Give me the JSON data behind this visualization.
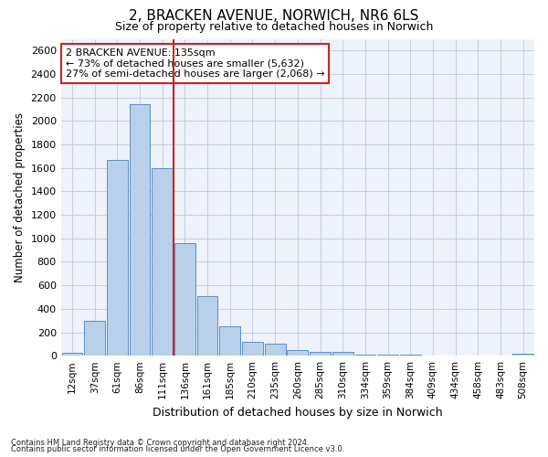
{
  "title1": "2, BRACKEN AVENUE, NORWICH, NR6 6LS",
  "title2": "Size of property relative to detached houses in Norwich",
  "xlabel": "Distribution of detached houses by size in Norwich",
  "ylabel": "Number of detached properties",
  "footnote1": "Contains HM Land Registry data © Crown copyright and database right 2024.",
  "footnote2": "Contains public sector information licensed under the Open Government Licence v3.0.",
  "annotation_line1": "2 BRACKEN AVENUE: 135sqm",
  "annotation_line2": "← 73% of detached houses are smaller (5,632)",
  "annotation_line3": "27% of semi-detached houses are larger (2,068) →",
  "bar_labels": [
    "12sqm",
    "37sqm",
    "61sqm",
    "86sqm",
    "111sqm",
    "136sqm",
    "161sqm",
    "185sqm",
    "210sqm",
    "235sqm",
    "260sqm",
    "285sqm",
    "310sqm",
    "334sqm",
    "359sqm",
    "384sqm",
    "409sqm",
    "434sqm",
    "458sqm",
    "483sqm",
    "508sqm"
  ],
  "bar_values": [
    25,
    300,
    1670,
    2140,
    1600,
    960,
    505,
    250,
    120,
    100,
    50,
    30,
    30,
    10,
    10,
    10,
    5,
    5,
    5,
    5,
    20
  ],
  "bar_color": "#b8d0ea",
  "bar_edge_color": "#5b8fc9",
  "vline_color": "#cc2222",
  "annotation_box_edgecolor": "#cc2222",
  "background_color": "#eef2fa",
  "grid_color": "#c5cfe0",
  "ylim": [
    0,
    2700
  ],
  "yticks": [
    0,
    200,
    400,
    600,
    800,
    1000,
    1200,
    1400,
    1600,
    1800,
    2000,
    2200,
    2400,
    2600
  ],
  "vline_bar_index": 5,
  "title1_fontsize": 11,
  "title2_fontsize": 9
}
